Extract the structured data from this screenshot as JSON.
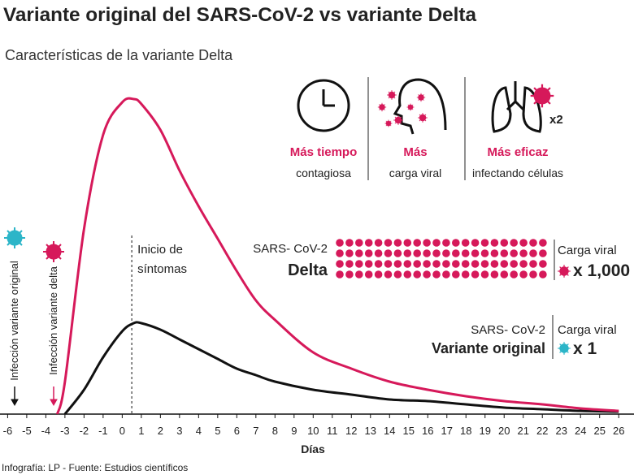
{
  "title": "Variante original del SARS-CoV-2 vs variante Delta",
  "subtitle": "Características de la variante Delta",
  "features": [
    {
      "highlight": "Más tiempo",
      "text": "contagiosa"
    },
    {
      "highlight": "Más",
      "text": "carga viral"
    },
    {
      "highlight": "Más eficaz",
      "text": "infectando células"
    }
  ],
  "lung_multiplier": "x2",
  "infection_labels": [
    "Infección variante original",
    "Infección variante delta"
  ],
  "footer": "Infografía: LP - Fuente: Estudios científicos",
  "chart_data": {
    "type": "line",
    "x_label": "Días",
    "x": [
      -3.4,
      -3,
      -2,
      -1,
      0,
      0.6,
      1,
      2,
      3,
      4,
      5,
      6,
      7,
      8,
      10,
      12,
      14,
      16,
      18,
      20,
      22,
      24,
      26
    ],
    "xlim": [
      -6.4,
      26.8
    ],
    "xticks": [
      -6,
      -5,
      -4,
      -3,
      -2,
      -1,
      0,
      1,
      2,
      3,
      4,
      5,
      6,
      7,
      8,
      9,
      10,
      11,
      12,
      13,
      14,
      15,
      16,
      17,
      18,
      19,
      20,
      21,
      22,
      23,
      24,
      25,
      26
    ],
    "ylim": [
      0,
      100
    ],
    "annotation": {
      "lines": [
        "Inicio de",
        "síntomas"
      ],
      "x": 0.5
    },
    "series": [
      {
        "name": "Delta",
        "color": "#d6195a",
        "label_prefix": "SARS- CoV-2",
        "load_label": "Carga viral",
        "load": "x 1,000",
        "values": [
          0,
          10,
          57,
          86,
          96,
          97,
          95.5,
          87.5,
          75,
          64,
          54,
          44,
          35,
          29,
          19,
          14,
          10,
          7.5,
          5.5,
          4,
          3,
          1.75,
          1
        ]
      },
      {
        "name": "Variante original",
        "color": "#111111",
        "label_prefix": "SARS- CoV-2",
        "load_label": "Carga viral",
        "load": "x 1",
        "values": [
          null,
          0,
          7.5,
          17.5,
          25.5,
          28,
          28,
          26,
          23,
          20,
          17,
          14,
          12,
          10,
          7.5,
          6,
          4.5,
          4,
          3,
          2,
          1.5,
          1,
          0.75
        ]
      }
    ]
  }
}
